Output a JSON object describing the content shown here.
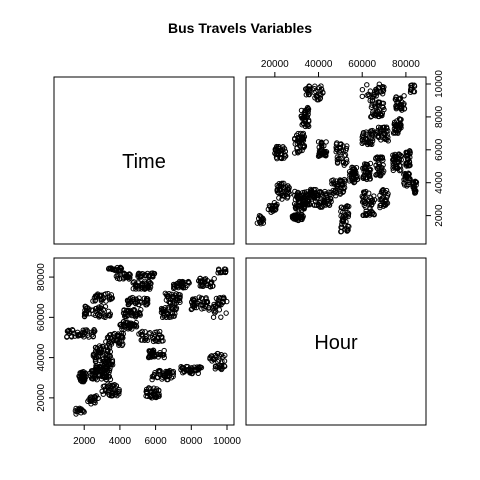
{
  "chart_data": {
    "type": "scatter",
    "title": "Bus Travels Variables",
    "variables": [
      "Time",
      "Hour"
    ],
    "ranges": {
      "Time": [
        10000,
        86000
      ],
      "Hour": [
        700,
        10000
      ]
    },
    "ticks": {
      "Time": [
        "20000",
        "40000",
        "60000",
        "80000"
      ],
      "Hour": [
        "2000",
        "4000",
        "6000",
        "8000",
        "10000"
      ]
    },
    "grid": false,
    "clusters": [
      {
        "hour": [
          1700,
          2100
        ],
        "time": [
          28000,
          33000
        ],
        "n": 40
      },
      {
        "hour": [
          1500,
          2000
        ],
        "time": [
          11000,
          15000
        ],
        "n": 14
      },
      {
        "hour": [
          2200,
          2800
        ],
        "time": [
          17000,
          21000
        ],
        "n": 20
      },
      {
        "hour": [
          2300,
          3500
        ],
        "time": [
          29000,
          34000
        ],
        "n": 60
      },
      {
        "hour": [
          2600,
          3600
        ],
        "time": [
          34000,
          40000
        ],
        "n": 55
      },
      {
        "hour": [
          2500,
          3500
        ],
        "time": [
          40000,
          46000
        ],
        "n": 40
      },
      {
        "hour": [
          3000,
          4000
        ],
        "time": [
          21000,
          27000
        ],
        "n": 40
      },
      {
        "hour": [
          3200,
          4200
        ],
        "time": [
          46000,
          52000
        ],
        "n": 40
      },
      {
        "hour": [
          3300,
          4100
        ],
        "time": [
          83000,
          85000
        ],
        "n": 22
      },
      {
        "hour": [
          3800,
          4600
        ],
        "time": [
          79000,
          82000
        ],
        "n": 25
      },
      {
        "hour": [
          2000,
          3600
        ],
        "time": [
          60000,
          66000
        ],
        "n": 45
      },
      {
        "hour": [
          2400,
          3600
        ],
        "time": [
          68000,
          72000
        ],
        "n": 30
      },
      {
        "hour": [
          1000,
          2600
        ],
        "time": [
          50000,
          54000
        ],
        "n": 40
      },
      {
        "hour": [
          4000,
          5000
        ],
        "time": [
          54000,
          58000
        ],
        "n": 40
      },
      {
        "hour": [
          4200,
          5200
        ],
        "time": [
          60000,
          64000
        ],
        "n": 35
      },
      {
        "hour": [
          4400,
          5600
        ],
        "time": [
          66000,
          70000
        ],
        "n": 35
      },
      {
        "hour": [
          4700,
          5800
        ],
        "time": [
          74000,
          78000
        ],
        "n": 40
      },
      {
        "hour": [
          5000,
          6000
        ],
        "time": [
          80000,
          82000
        ],
        "n": 30
      },
      {
        "hour": [
          5400,
          6200
        ],
        "time": [
          20000,
          25000
        ],
        "n": 40
      },
      {
        "hour": [
          5800,
          7000
        ],
        "time": [
          29000,
          34000
        ],
        "n": 45
      },
      {
        "hour": [
          5500,
          6500
        ],
        "time": [
          40000,
          44000
        ],
        "n": 35
      },
      {
        "hour": [
          5000,
          6500
        ],
        "time": [
          48000,
          53000
        ],
        "n": 35
      },
      {
        "hour": [
          6300,
          7200
        ],
        "time": [
          60000,
          65000
        ],
        "n": 35
      },
      {
        "hour": [
          6500,
          7400
        ],
        "time": [
          67000,
          72000
        ],
        "n": 35
      },
      {
        "hour": [
          7000,
          7900
        ],
        "time": [
          74000,
          78000
        ],
        "n": 35
      },
      {
        "hour": [
          7400,
          8600
        ],
        "time": [
          32000,
          36000
        ],
        "n": 40
      },
      {
        "hour": [
          8000,
          9000
        ],
        "time": [
          63000,
          70000
        ],
        "n": 40
      },
      {
        "hour": [
          8400,
          9300
        ],
        "time": [
          75000,
          80000
        ],
        "n": 30
      },
      {
        "hour": [
          9000,
          9900
        ],
        "time": [
          38000,
          42000
        ],
        "n": 22
      },
      {
        "hour": [
          9200,
          10000
        ],
        "time": [
          60000,
          70000
        ],
        "n": 30
      },
      {
        "hour": [
          9500,
          10000
        ],
        "time": [
          82000,
          84000
        ],
        "n": 12
      },
      {
        "hour": [
          9300,
          9900
        ],
        "time": [
          34000,
          36000
        ],
        "n": 14
      }
    ]
  }
}
